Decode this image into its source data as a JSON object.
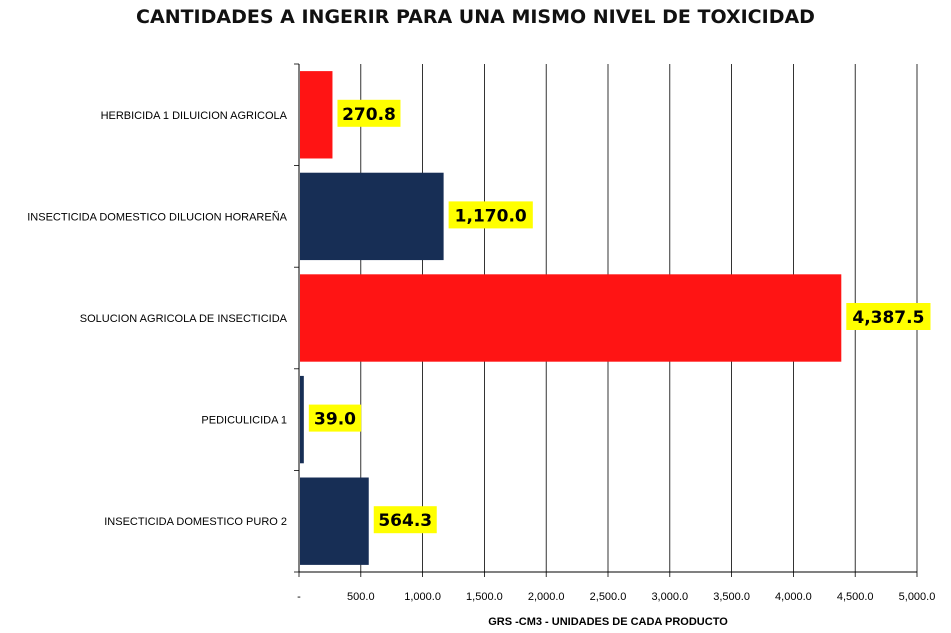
{
  "chart_data": {
    "type": "bar",
    "orientation": "horizontal",
    "title": "CANTIDADES A INGERIR PARA UNA  MISMO NIVEL DE TOXICIDAD",
    "xlabel": "GRS -CM3  -  UNIDADES DE CADA PRODUCTO",
    "ylabel": "",
    "xlim": [
      0,
      5000
    ],
    "x_ticks": [
      0,
      500,
      1000,
      1500,
      2000,
      2500,
      3000,
      3500,
      4000,
      4500,
      5000
    ],
    "x_tick_labels": [
      "-",
      "500.0",
      "1,000.0",
      "1,500.0",
      "2,000.0",
      "2,500.0",
      "3,000.0",
      "3,500.0",
      "4,000.0",
      "4,500.0",
      "5,000.0"
    ],
    "categories": [
      "HERBICIDA  1 DILUICION  AGRICOLA",
      "INSECTICIDA  DOMESTICO  DILUCION HORAREÑA",
      "SOLUCION AGRICOLA DE INSECTICIDA",
      "PEDICULICIDA  1",
      "INSECTICIDA  DOMESTICO  PURO 2"
    ],
    "values": [
      270.8,
      1170.0,
      4387.5,
      39.0,
      564.3
    ],
    "data_labels": [
      "270.8",
      "1,170.0",
      "4,387.5",
      "39.0",
      "564.3"
    ],
    "bar_colors": [
      "#ff1414",
      "#172e55",
      "#ff1414",
      "#172e55",
      "#172e55"
    ],
    "data_label_background": "#ffff00",
    "grid": true,
    "grid_axis": "x",
    "legend": "none"
  }
}
